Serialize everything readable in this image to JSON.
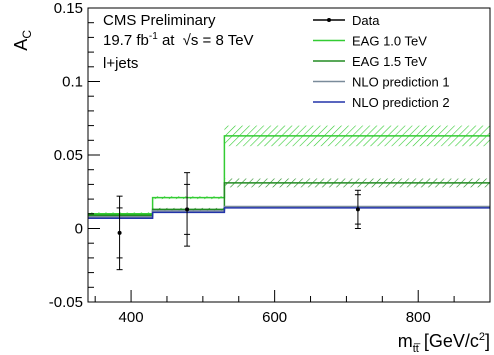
{
  "chart_data": {
    "type": "line",
    "title": "",
    "xlabel": {
      "base": "m",
      "sub": "tt̅",
      "unit": " [GeV/c",
      "sup": "2",
      "close": "]"
    },
    "ylabel": {
      "base": "A",
      "sub": "C"
    },
    "xlim": [
      340,
      900
    ],
    "ylim": [
      -0.05,
      0.15
    ],
    "x_ticks": [
      400,
      600,
      800
    ],
    "y_ticks": [
      -0.05,
      0,
      0.05,
      0.1,
      0.15
    ],
    "x_tick_labels": [
      "400",
      "600",
      "800"
    ],
    "y_tick_labels": [
      "-0.05",
      "0",
      "0.05",
      "0.1",
      "0.15"
    ],
    "grid": false,
    "legend_position": "top-right",
    "annotations": {
      "line1": "CMS Preliminary",
      "line2_a": "19.7 fb",
      "line2_sup": "-1",
      "line2_b": " at ",
      "line2_sqrt": "√s",
      "line2_c": " = 8 TeV",
      "line3": "l+jets"
    },
    "bin_edges": [
      340,
      430,
      530,
      900
    ],
    "series": [
      {
        "name": "Data",
        "color": "#000000",
        "x": [
          384,
          478,
          716
        ],
        "y": [
          -0.003,
          0.013,
          0.013
        ],
        "yerr_inner": [
          0.017,
          0.017,
          0.01
        ],
        "yerr_total": [
          0.025,
          0.025,
          0.013
        ]
      },
      {
        "name": "EAG 1.0 TeV",
        "color": "#33cc33",
        "values": [
          0.01,
          0.021,
          0.063
        ],
        "band": [
          0.001,
          0.001,
          0.007
        ]
      },
      {
        "name": "EAG 1.5 TeV",
        "color": "#228b22",
        "values": [
          0.009,
          0.013,
          0.031
        ],
        "band": [
          0.001,
          0.001,
          0.003
        ]
      },
      {
        "name": "NLO prediction 1",
        "color": "#7a8b9a",
        "values": [
          0.008,
          0.012,
          0.015
        ]
      },
      {
        "name": "NLO prediction 2",
        "color": "#2233aa",
        "values": [
          0.007,
          0.011,
          0.014
        ]
      }
    ]
  }
}
